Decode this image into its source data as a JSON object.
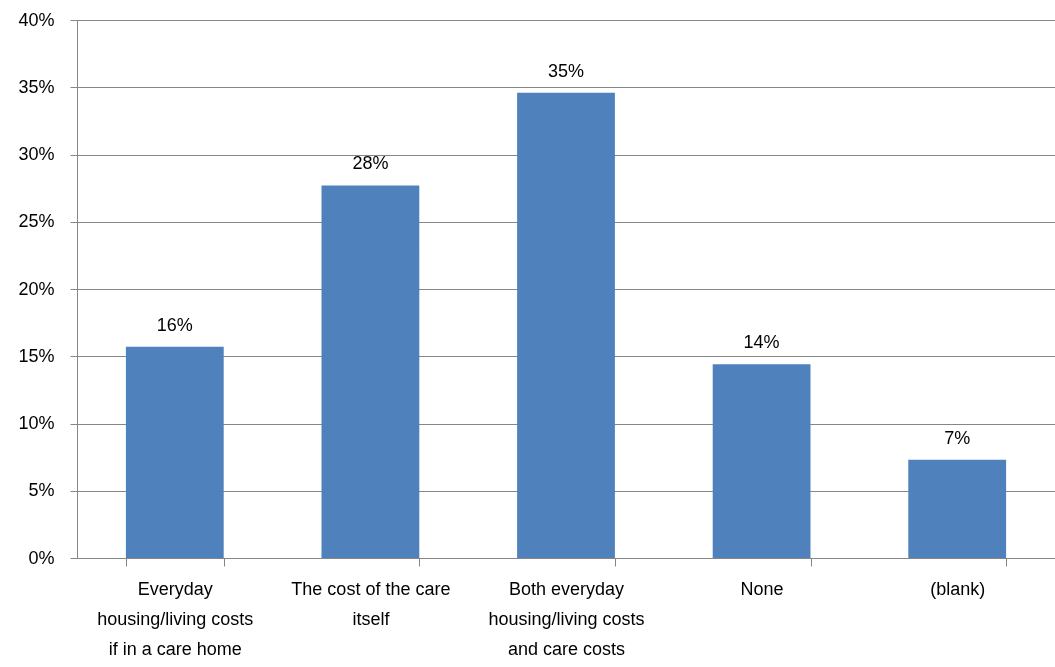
{
  "chart_data": {
    "type": "bar",
    "categories": [
      "Everyday housing/living costs if in a care home",
      "The cost of the care itself",
      "Both everyday housing/living costs and care costs",
      "None",
      "(blank)"
    ],
    "values": [
      15.7,
      27.7,
      34.6,
      14.4,
      7.3
    ],
    "value_labels": [
      "16%",
      "28%",
      "35%",
      "14%",
      "7%"
    ],
    "color": "#4f81bd",
    "ylim": [
      0,
      40
    ],
    "yticks": [
      {
        "value": 0,
        "label": "0%"
      },
      {
        "value": 5,
        "label": "5%"
      },
      {
        "value": 10,
        "label": "10%"
      },
      {
        "value": 15,
        "label": "15%"
      },
      {
        "value": 20,
        "label": "20%"
      },
      {
        "value": 25,
        "label": "25%"
      },
      {
        "value": 30,
        "label": "30%"
      },
      {
        "value": 35,
        "label": "35%"
      },
      {
        "value": 40,
        "label": "40%"
      }
    ],
    "grid": "y"
  }
}
